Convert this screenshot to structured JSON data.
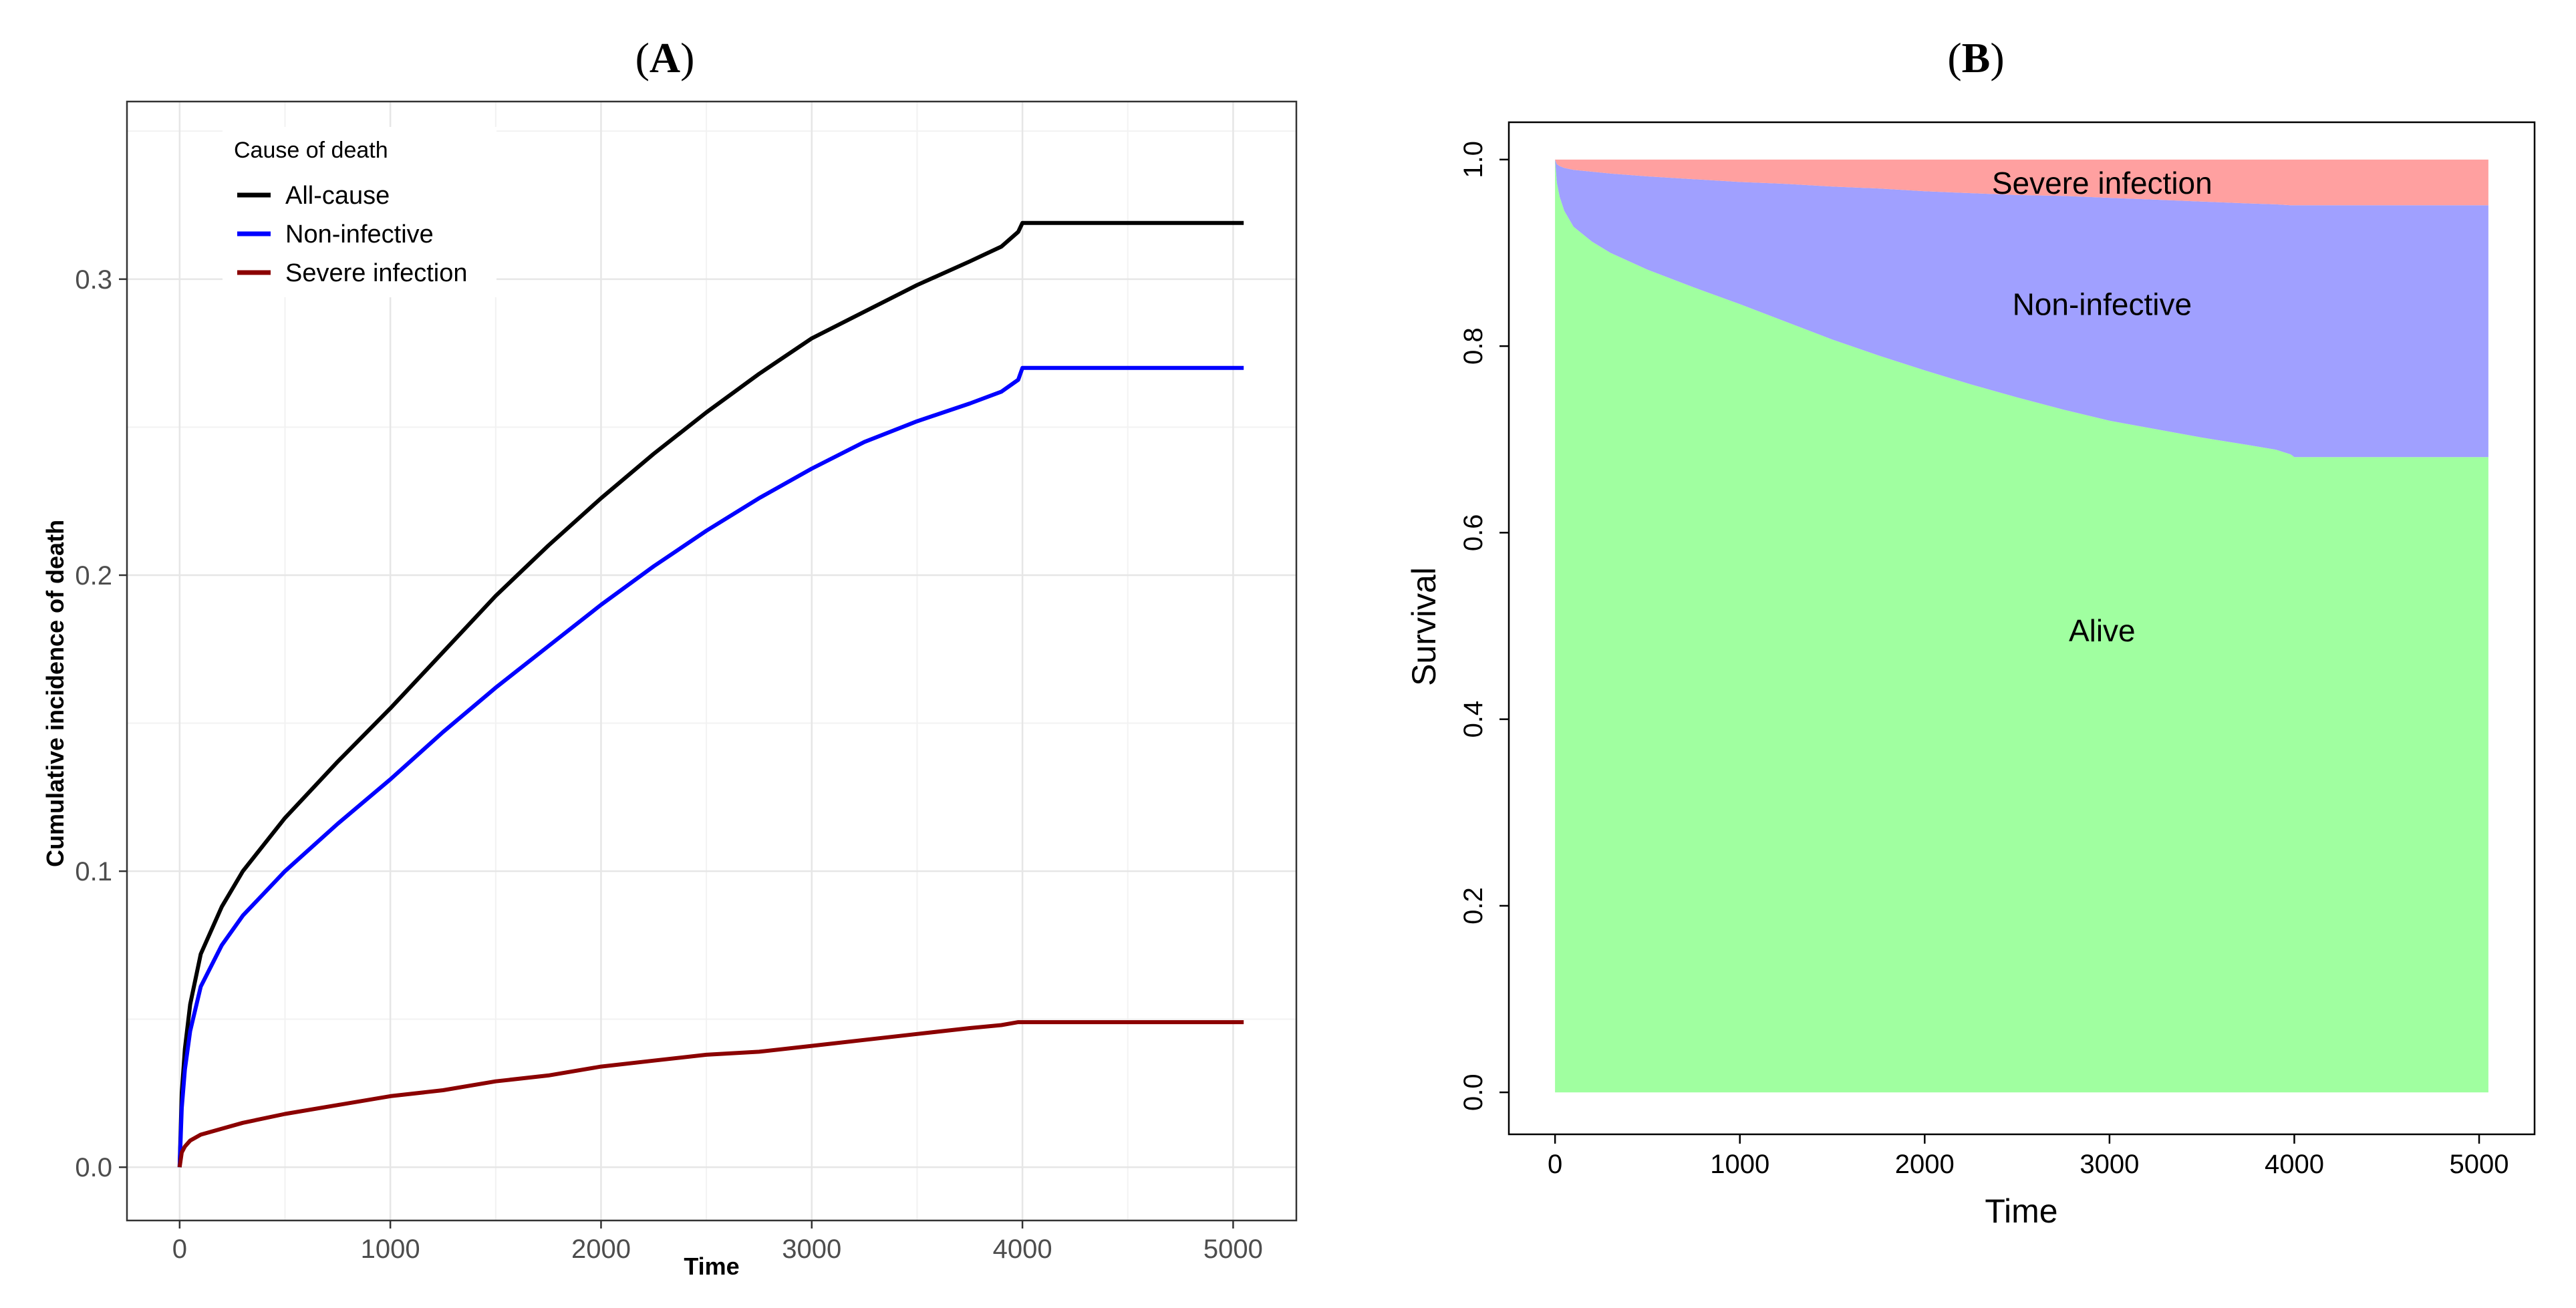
{
  "figure": {
    "panel_a_title": [
      "(",
      "A",
      ")"
    ],
    "panel_b_title": [
      "(",
      "B",
      ")"
    ]
  },
  "chart_data": [
    {
      "type": "line",
      "panel": "A",
      "xlabel": "Time",
      "ylabel": "Cumulative incidence of death",
      "xlim": [
        -250,
        5300
      ],
      "ylim": [
        -0.018,
        0.36
      ],
      "xticks": [
        0,
        1000,
        2000,
        3000,
        4000,
        5000
      ],
      "xtick_labels": [
        "0",
        "1000",
        "2000",
        "3000",
        "4000",
        "5000"
      ],
      "yticks": [
        0.0,
        0.1,
        0.2,
        0.3
      ],
      "ytick_labels": [
        "0.0",
        "0.1",
        "0.2",
        "0.3"
      ],
      "grid": true,
      "legend": {
        "title": "Cause of death",
        "position": "top-left",
        "entries": [
          {
            "label": "All-cause",
            "color": "#000000"
          },
          {
            "label": "Non-infective",
            "color": "#0000ff"
          },
          {
            "label": "Severe infection",
            "color": "#8b0000"
          }
        ]
      },
      "series": [
        {
          "name": "All-cause",
          "color": "#000000",
          "x": [
            0,
            10,
            25,
            50,
            100,
            200,
            300,
            500,
            750,
            1000,
            1250,
            1500,
            1750,
            2000,
            2250,
            2500,
            2750,
            3000,
            3250,
            3500,
            3750,
            3900,
            3980,
            4000,
            5050
          ],
          "y": [
            0.0,
            0.025,
            0.04,
            0.055,
            0.072,
            0.088,
            0.1,
            0.118,
            0.137,
            0.155,
            0.174,
            0.193,
            0.21,
            0.226,
            0.241,
            0.255,
            0.268,
            0.28,
            0.289,
            0.298,
            0.306,
            0.311,
            0.316,
            0.319,
            0.319
          ]
        },
        {
          "name": "Non-infective",
          "color": "#0000ff",
          "x": [
            0,
            10,
            25,
            50,
            100,
            200,
            300,
            500,
            750,
            1000,
            1250,
            1500,
            1750,
            2000,
            2250,
            2500,
            2750,
            3000,
            3250,
            3500,
            3750,
            3900,
            3980,
            4000,
            5050
          ],
          "y": [
            0.0,
            0.02,
            0.033,
            0.046,
            0.061,
            0.075,
            0.085,
            0.1,
            0.116,
            0.131,
            0.147,
            0.162,
            0.176,
            0.19,
            0.203,
            0.215,
            0.226,
            0.236,
            0.245,
            0.252,
            0.258,
            0.262,
            0.266,
            0.27,
            0.27
          ]
        },
        {
          "name": "Severe infection",
          "color": "#8b0000",
          "x": [
            0,
            10,
            25,
            50,
            100,
            200,
            300,
            500,
            750,
            1000,
            1250,
            1500,
            1750,
            2000,
            2250,
            2500,
            2750,
            3000,
            3250,
            3500,
            3750,
            3900,
            3980,
            4000,
            5050
          ],
          "y": [
            0.0,
            0.005,
            0.007,
            0.009,
            0.011,
            0.013,
            0.015,
            0.018,
            0.021,
            0.024,
            0.026,
            0.029,
            0.031,
            0.034,
            0.036,
            0.038,
            0.039,
            0.041,
            0.043,
            0.045,
            0.047,
            0.048,
            0.049,
            0.049,
            0.049
          ]
        }
      ]
    },
    {
      "type": "area",
      "panel": "B",
      "xlabel": "Time",
      "ylabel": "Survival",
      "xlim": [
        -250,
        5300
      ],
      "ylim": [
        -0.045,
        1.04
      ],
      "xticks": [
        0,
        1000,
        2000,
        3000,
        4000,
        5000
      ],
      "xtick_labels": [
        "0",
        "1000",
        "2000",
        "3000",
        "4000",
        "5000"
      ],
      "yticks": [
        0.0,
        0.2,
        0.4,
        0.6,
        0.8,
        1.0
      ],
      "ytick_labels": [
        "0.0",
        "0.2",
        "0.4",
        "0.6",
        "0.8",
        "1.0"
      ],
      "grid": false,
      "x": [
        0,
        10,
        25,
        50,
        100,
        200,
        300,
        500,
        750,
        1000,
        1250,
        1500,
        1750,
        2000,
        2250,
        2500,
        2750,
        3000,
        3250,
        3500,
        3750,
        3900,
        3980,
        4000,
        5050
      ],
      "layers": [
        {
          "name": "Alive",
          "color": "#a0ffa0",
          "lower": [
            0,
            0,
            0,
            0,
            0,
            0,
            0,
            0,
            0,
            0,
            0,
            0,
            0,
            0,
            0,
            0,
            0,
            0,
            0,
            0,
            0,
            0,
            0,
            0,
            0
          ],
          "upper": [
            1.0,
            0.975,
            0.96,
            0.945,
            0.928,
            0.912,
            0.9,
            0.882,
            0.863,
            0.845,
            0.826,
            0.807,
            0.79,
            0.774,
            0.759,
            0.745,
            0.732,
            0.72,
            0.711,
            0.702,
            0.694,
            0.689,
            0.684,
            0.681,
            0.681
          ]
        },
        {
          "name": "Non-infective",
          "color": "#a0a0ff",
          "lower": [
            1.0,
            0.975,
            0.96,
            0.945,
            0.928,
            0.912,
            0.9,
            0.882,
            0.863,
            0.845,
            0.826,
            0.807,
            0.79,
            0.774,
            0.759,
            0.745,
            0.732,
            0.72,
            0.711,
            0.702,
            0.694,
            0.689,
            0.684,
            0.681,
            0.681
          ],
          "upper": [
            1.0,
            0.995,
            0.993,
            0.991,
            0.989,
            0.987,
            0.985,
            0.982,
            0.979,
            0.976,
            0.974,
            0.971,
            0.969,
            0.966,
            0.964,
            0.962,
            0.961,
            0.959,
            0.957,
            0.955,
            0.953,
            0.952,
            0.951,
            0.951,
            0.951
          ]
        },
        {
          "name": "Severe infection",
          "color": "#ffa0a0",
          "lower": [
            1.0,
            0.995,
            0.993,
            0.991,
            0.989,
            0.987,
            0.985,
            0.982,
            0.979,
            0.976,
            0.974,
            0.971,
            0.969,
            0.966,
            0.964,
            0.962,
            0.961,
            0.959,
            0.957,
            0.955,
            0.953,
            0.952,
            0.951,
            0.951,
            0.951
          ],
          "upper": [
            1,
            1,
            1,
            1,
            1,
            1,
            1,
            1,
            1,
            1,
            1,
            1,
            1,
            1,
            1,
            1,
            1,
            1,
            1,
            1,
            1,
            1,
            1,
            1,
            1
          ]
        }
      ],
      "region_labels": [
        {
          "text": "Severe infection",
          "x": 2960,
          "y": 0.975
        },
        {
          "text": "Non-infective",
          "x": 2960,
          "y": 0.845
        },
        {
          "text": "Alive",
          "x": 2960,
          "y": 0.495
        }
      ]
    }
  ]
}
